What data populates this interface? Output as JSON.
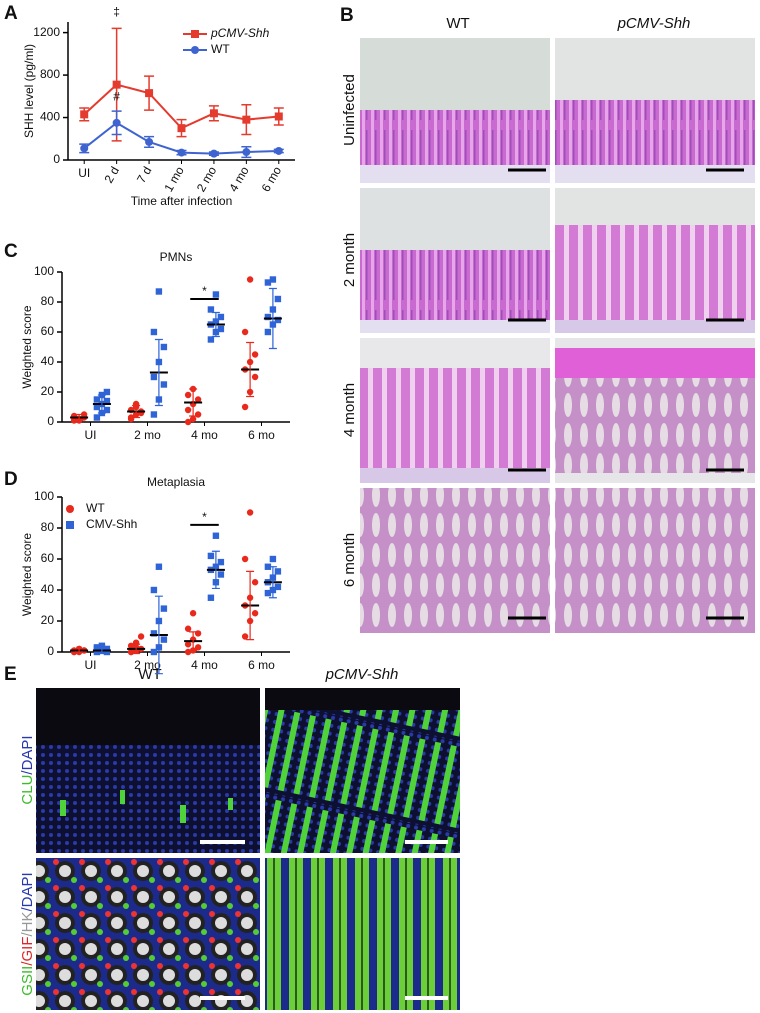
{
  "panel_letters": [
    "A",
    "B",
    "C",
    "D",
    "E"
  ],
  "histology": {
    "columns": [
      "WT",
      "pCMV-Shh"
    ],
    "rows": [
      "Uninfected",
      "2 month",
      "4 month",
      "6 month"
    ]
  },
  "immunofluorescence": {
    "columns": [
      "WT",
      "pCMV-Shh"
    ],
    "rows": [
      [
        "CLU",
        "/DAPI"
      ],
      [
        "GSII",
        "/GIF",
        "/HK",
        "/DAPI"
      ]
    ]
  },
  "chart_data": [
    {
      "type": "line",
      "ylabel": "SHH level (pg/ml)",
      "xlabel": "Time after infection",
      "categories": [
        "UI",
        "2 d",
        "7 d",
        "1 mo",
        "2 mo",
        "4 mo",
        "6 mo"
      ],
      "series": [
        {
          "name": "pCMV-Shh",
          "color": "#e53a2e",
          "marker": "square",
          "values": [
            430,
            710,
            630,
            300,
            440,
            380,
            410
          ],
          "errors": [
            60,
            530,
            160,
            80,
            70,
            140,
            80
          ]
        },
        {
          "name": "WT",
          "color": "#3f64cf",
          "marker": "circle",
          "values": [
            110,
            350,
            170,
            70,
            60,
            75,
            85
          ],
          "errors": [
            40,
            110,
            50,
            20,
            15,
            50,
            15
          ]
        }
      ],
      "ylim": [
        0,
        1300
      ],
      "yticks": [
        0,
        400,
        800,
        1200
      ],
      "legend": "upper right",
      "annotations": [
        "‡",
        "#"
      ]
    },
    {
      "type": "dotplot",
      "title": "PMNs",
      "ylabel": "Weighted score",
      "categories": [
        "UI",
        "2 mo",
        "4 mo",
        "6 mo"
      ],
      "series": [
        {
          "color": "#e8291c",
          "marker": "circle",
          "points": [
            [
              1,
              2,
              3,
              4,
              2,
              5,
              3,
              1
            ],
            [
              2,
              5,
              7,
              8,
              10,
              6,
              3,
              12
            ],
            [
              0,
              2,
              5,
              8,
              12,
              15,
              18,
              22
            ],
            [
              10,
              20,
              30,
              35,
              40,
              45,
              60,
              95
            ]
          ],
          "means": [
            3,
            7,
            13,
            35
          ],
          "errors": [
            2,
            4,
            9,
            18
          ]
        },
        {
          "color": "#2f64d6",
          "marker": "square",
          "points": [
            [
              3,
              6,
              8,
              10,
              12,
              14,
              15,
              18,
              20
            ],
            [
              5,
              15,
              25,
              30,
              40,
              50,
              60,
              87
            ],
            [
              55,
              60,
              62,
              65,
              67,
              70,
              75,
              85
            ],
            [
              60,
              65,
              68,
              70,
              75,
              82,
              93,
              95
            ]
          ],
          "means": [
            12,
            33,
            65,
            69
          ],
          "errors": [
            6,
            22,
            8,
            20
          ]
        }
      ],
      "ylim": [
        0,
        100
      ],
      "yticks": [
        0,
        20,
        40,
        60,
        80,
        100
      ],
      "annotations": [
        "*"
      ]
    },
    {
      "type": "dotplot",
      "title": "Metaplasia",
      "ylabel": "Weighted score",
      "categories": [
        "UI",
        "2 mo",
        "4 mo",
        "6 mo"
      ],
      "series": [
        {
          "name": "WT",
          "color": "#e8291c",
          "marker": "circle",
          "points": [
            [
              0,
              0,
              1,
              1,
              2,
              1,
              0,
              2
            ],
            [
              0,
              1,
              2,
              4,
              6,
              10,
              0,
              3
            ],
            [
              0,
              1,
              3,
              5,
              8,
              12,
              15,
              25
            ],
            [
              10,
              20,
              25,
              30,
              35,
              45,
              60,
              90
            ]
          ],
          "means": [
            1,
            2,
            7,
            30
          ],
          "errors": [
            1,
            3,
            6,
            22
          ]
        },
        {
          "name": "CMV-Shh",
          "color": "#2f64d6",
          "marker": "square",
          "points": [
            [
              0,
              1,
              2,
              3,
              4,
              0,
              2,
              3
            ],
            [
              0,
              3,
              8,
              12,
              20,
              28,
              40,
              55
            ],
            [
              35,
              45,
              50,
              53,
              55,
              58,
              62,
              75
            ],
            [
              38,
              40,
              42,
              45,
              48,
              52,
              55,
              60
            ]
          ],
          "means": [
            1,
            11,
            53,
            45
          ],
          "errors": [
            2,
            25,
            12,
            10
          ]
        }
      ],
      "ylim": [
        0,
        100
      ],
      "yticks": [
        0,
        20,
        40,
        60,
        80,
        100
      ],
      "legend": "upper left",
      "annotations": [
        "*"
      ]
    }
  ]
}
